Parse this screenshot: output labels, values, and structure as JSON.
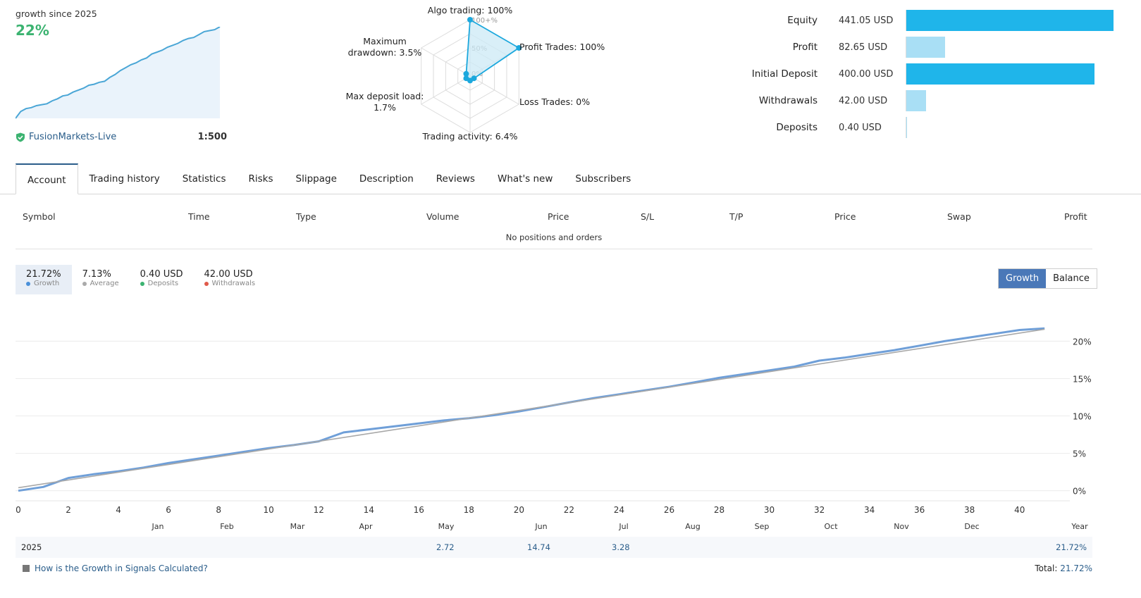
{
  "top_left": {
    "growth_since": "growth since 2025",
    "growth_value": "22%",
    "server": "FusionMarkets-Live",
    "leverage": "1:500",
    "spark": [
      0.0,
      3.5,
      5.0,
      5.5,
      6.5,
      7.0,
      7.5,
      9.0,
      10.0,
      11.5,
      12.0,
      13.5,
      14.5,
      15.5,
      17.0,
      17.5,
      18.5,
      19.0,
      21.0,
      22.5,
      24.5,
      26.0,
      27.5,
      28.5,
      30.0,
      31.0,
      33.0,
      34.0,
      35.0,
      36.5,
      37.5,
      38.5,
      40.0,
      41.0,
      41.5,
      43.0,
      44.5,
      45.0,
      45.5,
      47.0
    ]
  },
  "radar": {
    "axes": [
      {
        "label_lines": [
          "Algo trading: 100%"
        ],
        "value": 100
      },
      {
        "label_lines": [
          "Profit Trades: 100%"
        ],
        "value": 100
      },
      {
        "label_lines": [
          "Loss Trades: 0%"
        ],
        "value": 0
      },
      {
        "label_lines": [
          "Trading activity: 6.4%"
        ],
        "value": 6.4
      },
      {
        "label_lines": [
          "Max deposit load:",
          "1.7%"
        ],
        "value": 1.7
      },
      {
        "label_lines": [
          "Maximum",
          "drawdown: 3.5%"
        ],
        "value": 3.5
      }
    ],
    "ticks": [
      "100+%",
      "50%",
      "0%"
    ],
    "fill_color": "#cce9f6",
    "line_color": "#1ca8dd"
  },
  "summary": {
    "rows": [
      {
        "label": "Equity",
        "value": "441.05 USD",
        "amount": 441.05,
        "color": "#1fb5ea"
      },
      {
        "label": "Profit",
        "value": "82.65 USD",
        "amount": 82.65,
        "color": "#a9dff5"
      },
      {
        "label": "Initial Deposit",
        "value": "400.00 USD",
        "amount": 400.0,
        "color": "#1fb5ea"
      },
      {
        "label": "Withdrawals",
        "value": "42.00 USD",
        "amount": 42.0,
        "color": "#a9dff5"
      },
      {
        "label": "Deposits",
        "value": "0.40 USD",
        "amount": 0.4,
        "color": "#a9dff5"
      }
    ]
  },
  "tabs": [
    "Account",
    "Trading history",
    "Statistics",
    "Risks",
    "Slippage",
    "Description",
    "Reviews",
    "What's new",
    "Subscribers"
  ],
  "positions_table": {
    "columns": [
      "Symbol",
      "Time",
      "Type",
      "Volume",
      "Price",
      "S/L",
      "T/P",
      "Price",
      "Swap",
      "Profit"
    ],
    "empty_message": "No positions and orders"
  },
  "stats": [
    {
      "value": "21.72%",
      "label": "Growth",
      "color": "#4a90d9"
    },
    {
      "value": "7.13%",
      "label": "Average",
      "color": "#aaaaaa"
    },
    {
      "value": "0.40 USD",
      "label": "Deposits",
      "color": "#3cb371"
    },
    {
      "value": "42.00 USD",
      "label": "Withdrawals",
      "color": "#e05a4a"
    }
  ],
  "toggle": {
    "growth": "Growth",
    "balance": "Balance"
  },
  "chart_data": {
    "type": "line",
    "x_ticks": [
      "0",
      "2",
      "4",
      "6",
      "8",
      "10",
      "12",
      "14",
      "16",
      "18",
      "20",
      "22",
      "24",
      "26",
      "28",
      "30",
      "32",
      "34",
      "36",
      "38",
      "40"
    ],
    "month_labels": [
      "Jan",
      "Feb",
      "Mar",
      "Apr",
      "May",
      "Jun",
      "Jul",
      "Aug",
      "Sep",
      "Oct",
      "Nov",
      "Dec",
      "Year"
    ],
    "y_ticks": [
      "20%",
      "15%",
      "10%",
      "5%",
      "0%"
    ],
    "xlim": [
      0,
      41.5
    ],
    "ylim": [
      -2.2,
      22.3
    ],
    "series": [
      {
        "values": [
          [
            0,
            0.0
          ],
          [
            1,
            0.5
          ],
          [
            2,
            1.7
          ],
          [
            3,
            2.2
          ],
          [
            4,
            2.6
          ],
          [
            5,
            3.1
          ],
          [
            6,
            3.7
          ],
          [
            7,
            4.2
          ],
          [
            8,
            4.7
          ],
          [
            9,
            5.2
          ],
          [
            10,
            5.7
          ],
          [
            11,
            6.1
          ],
          [
            12,
            6.6
          ],
          [
            13,
            7.8
          ],
          [
            14,
            8.2
          ],
          [
            15,
            8.6
          ],
          [
            16,
            9.0
          ],
          [
            17,
            9.4
          ],
          [
            18,
            9.7
          ],
          [
            19,
            10.1
          ],
          [
            20,
            10.6
          ],
          [
            21,
            11.2
          ],
          [
            22,
            11.8
          ],
          [
            23,
            12.4
          ],
          [
            24,
            12.9
          ],
          [
            25,
            13.4
          ],
          [
            26,
            13.9
          ],
          [
            27,
            14.5
          ],
          [
            28,
            15.1
          ],
          [
            29,
            15.6
          ],
          [
            30,
            16.1
          ],
          [
            31,
            16.6
          ],
          [
            32,
            17.4
          ],
          [
            33,
            17.8
          ],
          [
            34,
            18.3
          ],
          [
            35,
            18.8
          ],
          [
            36,
            19.4
          ],
          [
            37,
            20.0
          ],
          [
            38,
            20.5
          ],
          [
            39,
            21.0
          ],
          [
            40,
            21.5
          ],
          [
            41,
            21.72
          ]
        ],
        "color": "#6f9fd8"
      },
      {
        "values": [
          [
            0,
            0.4
          ],
          [
            41,
            21.6
          ]
        ],
        "color": "#a8a8a8"
      }
    ]
  },
  "year_row": {
    "year": "2025",
    "may": "2.72",
    "jun": "14.74",
    "jul": "3.28",
    "total": "21.72%"
  },
  "footer": {
    "help": "How is the Growth in Signals Calculated?",
    "total_label": "Total:",
    "total_value": "21.72%"
  }
}
